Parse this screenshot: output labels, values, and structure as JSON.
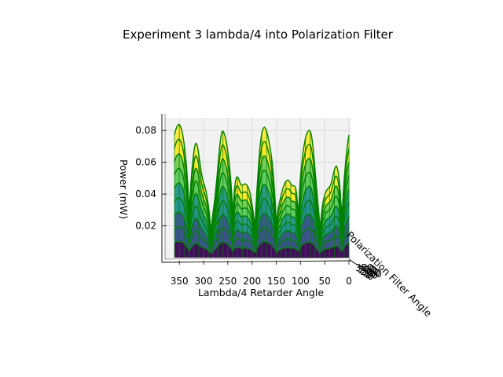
{
  "chart_data": {
    "type": "surface3d",
    "title": "Experiment 3 lambda/4 into Polarization Filter",
    "xlabel": "Lambda/4 Retarder Angle",
    "ylabel": "Polarization Filter Angle",
    "zlabel": "Power (mW)",
    "x_ticks": [
      "350",
      "300",
      "250",
      "200",
      "150",
      "100",
      "50",
      "0"
    ],
    "z_ticks": [
      "0.02",
      "0.04",
      "0.06",
      "0.08"
    ],
    "y_ticks": [
      "350",
      "300",
      "250",
      "200",
      "150",
      "100",
      "50",
      "0"
    ],
    "xlim": [
      0,
      360
    ],
    "ylim": [
      0,
      360
    ],
    "zlim": [
      0,
      0.088
    ],
    "view": "front, looking along the Polarization Filter Angle axis",
    "colormap": [
      "#440154",
      "#3b528b",
      "#21918c",
      "#5ec962",
      "#fde725"
    ],
    "edge_color": "#008000",
    "retarder_angles": [
      0,
      20,
      40,
      60,
      80,
      100,
      120,
      140,
      160,
      180,
      200,
      220,
      240,
      260,
      280,
      300,
      320,
      340,
      360
    ],
    "power_max_by_retarder_angle": [
      0.083,
      0.072,
      0.045,
      0.052,
      0.08,
      0.081,
      0.049,
      0.048,
      0.076,
      0.084,
      0.05,
      0.046,
      0.079,
      0.08,
      0.047,
      0.05,
      0.082,
      0.085,
      0.083
    ],
    "power_min": 0.001,
    "grid": true
  }
}
